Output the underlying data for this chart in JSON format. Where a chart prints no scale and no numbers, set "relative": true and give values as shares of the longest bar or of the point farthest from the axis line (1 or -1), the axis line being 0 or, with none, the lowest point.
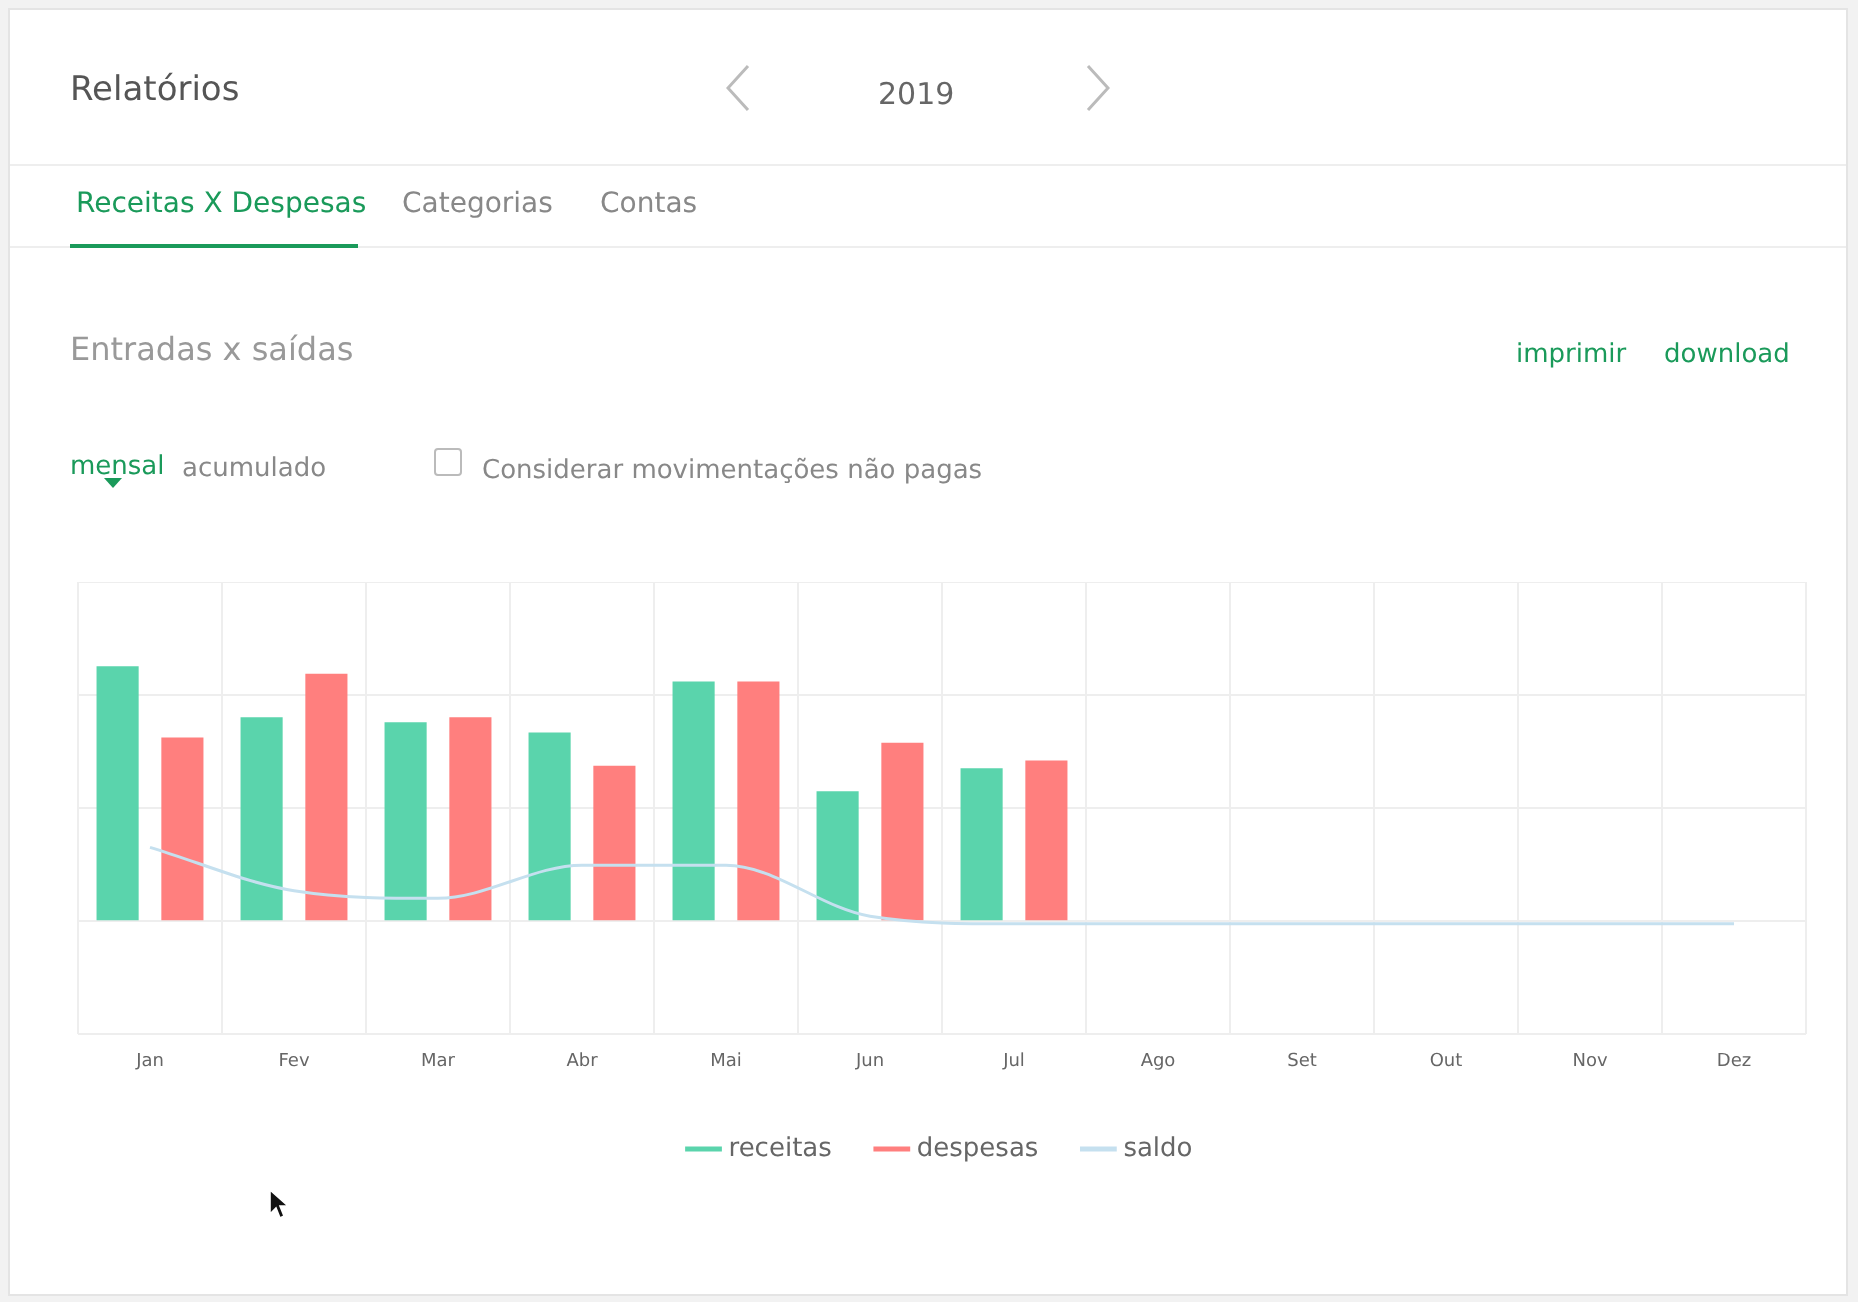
{
  "chart_data": {
    "type": "bar",
    "title": "Relatórios",
    "subtitle": "Entradas x saídas",
    "relative": true,
    "grid": true,
    "legend": "bottom",
    "marker": "none",
    "annotations": [
      "2019",
      "Receitas X Despesas",
      "Categorias",
      "Contas",
      "imprimir",
      "download",
      "mensal",
      "acumulado",
      "Considerar movimentações não pagas"
    ],
    "categories": [
      "Jan",
      "Fev",
      "Mar",
      "Abr",
      "Mai",
      "Jun",
      "Jul",
      "Ago",
      "Set",
      "Out",
      "Nov",
      "Dez"
    ],
    "series": [
      {
        "name": "receitas",
        "color": "#5ad4ac",
        "values": [
          1,
          0.8,
          0.78,
          0.74,
          0.94,
          0.51,
          0.6,
          null,
          null,
          null,
          null,
          null
        ]
      },
      {
        "name": "despesas",
        "color": "#ff7f7e",
        "values": [
          0.72,
          0.97,
          0.8,
          0.61,
          0.94,
          0.7,
          0.63,
          null,
          null,
          null,
          null,
          null
        ]
      },
      {
        "name": "saldo",
        "type": "line",
        "color": "#c5e0ef",
        "values": [
          0.29,
          0.12,
          0.09,
          0.22,
          0.22,
          0.02,
          -0.01,
          -0.01,
          -0.01,
          -0.01,
          -0.01,
          -0.01
        ]
      }
    ]
  }
}
